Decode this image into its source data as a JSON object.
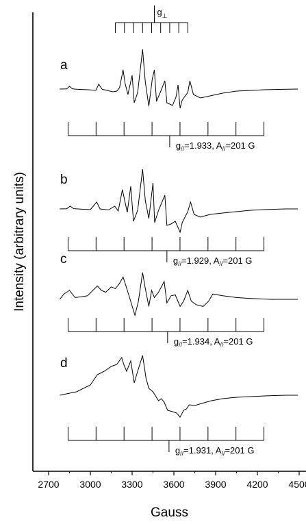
{
  "chart_data": {
    "type": "line",
    "xlabel": "Gauss",
    "ylabel": "Intensity (arbitrary units)",
    "xlim": [
      2700,
      4500
    ],
    "xticks": [
      2700,
      3000,
      3300,
      3600,
      3900,
      4200,
      4500
    ],
    "top_marker": {
      "label": "g",
      "sub": "⊥",
      "start": 3180,
      "spacing": 65,
      "count": 9,
      "center": 3460
    },
    "series": [
      {
        "label": "a",
        "comb": {
          "start": 2840,
          "spacing": 201,
          "count": 8,
          "center": 3570
        },
        "annotation": {
          "prefix": "g",
          "sub": "//",
          "g_text": "=1.933, A",
          "a_sub": "//",
          "a_text": "=201 G"
        },
        "points": [
          [
            2780,
            0
          ],
          [
            2830,
            -0.3
          ],
          [
            2850,
            -4
          ],
          [
            2870,
            -0.4
          ],
          [
            2900,
            0.3
          ],
          [
            2950,
            0.8
          ],
          [
            3000,
            1.2
          ],
          [
            3040,
            2
          ],
          [
            3060,
            -7
          ],
          [
            3085,
            0.4
          ],
          [
            3120,
            2
          ],
          [
            3160,
            4
          ],
          [
            3190,
            3
          ],
          [
            3210,
            -2
          ],
          [
            3235,
            -28
          ],
          [
            3250,
            -8
          ],
          [
            3270,
            8
          ],
          [
            3300,
            -20
          ],
          [
            3315,
            20
          ],
          [
            3340,
            5
          ],
          [
            3375,
            -58
          ],
          [
            3395,
            -10
          ],
          [
            3420,
            25
          ],
          [
            3445,
            -15
          ],
          [
            3460,
            -28
          ],
          [
            3475,
            18
          ],
          [
            3500,
            6
          ],
          [
            3535,
            -12
          ],
          [
            3550,
            20
          ],
          [
            3590,
            24
          ],
          [
            3615,
            12
          ],
          [
            3630,
            -6
          ],
          [
            3645,
            28
          ],
          [
            3660,
            16
          ],
          [
            3700,
            5
          ],
          [
            3715,
            -12
          ],
          [
            3740,
            8
          ],
          [
            3790,
            13
          ],
          [
            3860,
            10
          ],
          [
            3950,
            6
          ],
          [
            4050,
            3
          ],
          [
            4150,
            2
          ],
          [
            4250,
            1
          ],
          [
            4350,
            0.5
          ],
          [
            4490,
            0
          ]
        ]
      },
      {
        "label": "b",
        "comb": {
          "start": 2840,
          "spacing": 201,
          "count": 8,
          "center": 3550
        },
        "annotation": {
          "prefix": "g",
          "sub": "//",
          "g_text": "=1.929, A",
          "a_sub": "//",
          "a_text": "=201 G"
        },
        "points": [
          [
            2780,
            0
          ],
          [
            2830,
            -0.3
          ],
          [
            2855,
            -4
          ],
          [
            2880,
            -0.4
          ],
          [
            2950,
            0.5
          ],
          [
            3000,
            1
          ],
          [
            3045,
            -10
          ],
          [
            3070,
            0
          ],
          [
            3130,
            1.5
          ],
          [
            3175,
            -4
          ],
          [
            3200,
            3
          ],
          [
            3230,
            -28
          ],
          [
            3245,
            -14
          ],
          [
            3265,
            5
          ],
          [
            3290,
            -33
          ],
          [
            3310,
            18
          ],
          [
            3340,
            2
          ],
          [
            3375,
            -58
          ],
          [
            3395,
            -12
          ],
          [
            3420,
            14
          ],
          [
            3450,
            -38
          ],
          [
            3462,
            20
          ],
          [
            3490,
            2
          ],
          [
            3535,
            -20
          ],
          [
            3550,
            24
          ],
          [
            3580,
            22
          ],
          [
            3610,
            18
          ],
          [
            3645,
            34
          ],
          [
            3660,
            20
          ],
          [
            3700,
            4
          ],
          [
            3720,
            -10
          ],
          [
            3745,
            8
          ],
          [
            3790,
            12
          ],
          [
            3860,
            8
          ],
          [
            3950,
            6
          ],
          [
            4050,
            4
          ],
          [
            4150,
            2
          ],
          [
            4250,
            1
          ],
          [
            4400,
            0
          ],
          [
            4490,
            0
          ]
        ]
      },
      {
        "label": "c",
        "comb": {
          "start": 2840,
          "spacing": 201,
          "count": 8,
          "center": 3555
        },
        "annotation": {
          "prefix": "g",
          "sub": "//",
          "g_text": "=1.934, A",
          "a_sub": "//",
          "a_text": "=201 G"
        },
        "points": [
          [
            2780,
            0
          ],
          [
            2810,
            -6
          ],
          [
            2850,
            -10
          ],
          [
            2890,
            -2
          ],
          [
            2940,
            -3
          ],
          [
            2980,
            -4
          ],
          [
            3050,
            -15
          ],
          [
            3080,
            -10
          ],
          [
            3110,
            -8
          ],
          [
            3150,
            -14
          ],
          [
            3180,
            -12
          ],
          [
            3210,
            -18
          ],
          [
            3235,
            -25
          ],
          [
            3250,
            -18
          ],
          [
            3280,
            -3
          ],
          [
            3320,
            18
          ],
          [
            3345,
            2
          ],
          [
            3375,
            -30
          ],
          [
            3395,
            -12
          ],
          [
            3420,
            8
          ],
          [
            3440,
            -10
          ],
          [
            3460,
            -2
          ],
          [
            3490,
            -8
          ],
          [
            3530,
            -20
          ],
          [
            3550,
            4
          ],
          [
            3580,
            -4
          ],
          [
            3610,
            -5
          ],
          [
            3645,
            8
          ],
          [
            3670,
            2
          ],
          [
            3700,
            -10
          ],
          [
            3725,
            2
          ],
          [
            3760,
            6
          ],
          [
            3810,
            8
          ],
          [
            3850,
            2
          ],
          [
            3880,
            -6
          ],
          [
            3950,
            -4
          ],
          [
            4050,
            -2
          ],
          [
            4150,
            -1
          ],
          [
            4300,
            0
          ],
          [
            4490,
            0
          ]
        ]
      },
      {
        "label": "d",
        "comb": {
          "start": 2840,
          "spacing": 201,
          "count": 8,
          "center": 3565
        },
        "annotation": {
          "prefix": "g",
          "sub": "//",
          "g_text": "=1.931, A",
          "a_sub": "//",
          "a_text": "=201 G"
        },
        "points": [
          [
            2780,
            0
          ],
          [
            2900,
            -5
          ],
          [
            3000,
            -15
          ],
          [
            3050,
            -30
          ],
          [
            3100,
            -35
          ],
          [
            3150,
            -42
          ],
          [
            3190,
            -45
          ],
          [
            3225,
            -55
          ],
          [
            3240,
            -45
          ],
          [
            3260,
            -35
          ],
          [
            3290,
            -50
          ],
          [
            3315,
            -18
          ],
          [
            3340,
            -35
          ],
          [
            3375,
            -58
          ],
          [
            3400,
            -25
          ],
          [
            3420,
            -10
          ],
          [
            3450,
            -5
          ],
          [
            3490,
            8
          ],
          [
            3510,
            5
          ],
          [
            3530,
            10
          ],
          [
            3555,
            22
          ],
          [
            3590,
            24
          ],
          [
            3620,
            26
          ],
          [
            3645,
            32
          ],
          [
            3670,
            22
          ],
          [
            3690,
            20
          ],
          [
            3710,
            14
          ],
          [
            3750,
            15
          ],
          [
            3800,
            12
          ],
          [
            3870,
            8
          ],
          [
            3950,
            5
          ],
          [
            4050,
            3
          ],
          [
            4150,
            2
          ],
          [
            4250,
            1
          ],
          [
            4400,
            0
          ],
          [
            4490,
            0
          ]
        ]
      }
    ]
  }
}
